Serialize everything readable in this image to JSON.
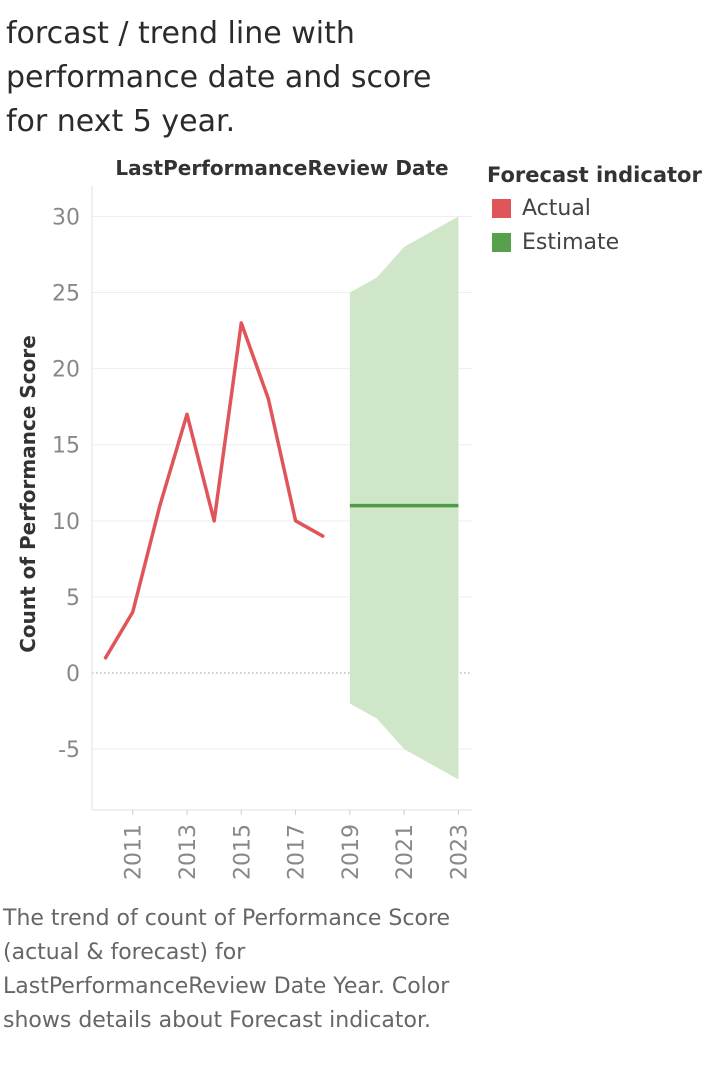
{
  "title": "forcast / trend line with\nperformance  date and score\nfor next 5 year.",
  "caption": "The trend of count of Performance Score (actual & forecast)  for LastPerformanceReview Date Year. Color shows details about Forecast indicator.",
  "colors": {
    "actual": "#e05559",
    "estimate_line": "#4f9a45",
    "estimate_band": "#cfe6c9",
    "legend_actual": "#e05559",
    "legend_estimate": "#57a14d"
  },
  "chart_data": {
    "type": "line",
    "title": "LastPerformanceReview Date",
    "xlabel": "LastPerformanceReview Date",
    "ylabel": "Count of Performance Score",
    "xlim": [
      2009.5,
      2023.5
    ],
    "ylim": [
      -9,
      32
    ],
    "y_ticks": [
      30,
      25,
      20,
      15,
      10,
      5,
      0,
      -5
    ],
    "y_tick_labels": [
      "30",
      "25",
      "20",
      "15",
      "10",
      "5",
      "0",
      "-5"
    ],
    "x_ticks": [
      2011,
      2013,
      2015,
      2017,
      2019,
      2021,
      2023
    ],
    "x_tick_labels": [
      "2011",
      "2013",
      "2015",
      "2017",
      "2019",
      "2021",
      "2023"
    ],
    "legend": {
      "title": "Forecast indicator",
      "position": "right",
      "items": [
        {
          "label": "Actual",
          "color": "#e05559"
        },
        {
          "label": "Estimate",
          "color": "#57a14d"
        }
      ]
    },
    "series": [
      {
        "name": "Actual",
        "x": [
          2010,
          2011,
          2012,
          2013,
          2014,
          2015,
          2016,
          2017,
          2018
        ],
        "values": [
          1,
          4,
          11,
          17,
          10,
          23,
          18,
          10,
          9
        ]
      },
      {
        "name": "Estimate",
        "x": [
          2019,
          2020,
          2021,
          2022,
          2023
        ],
        "values": [
          11,
          11,
          11,
          11,
          11
        ],
        "upper": [
          25,
          26,
          28,
          29,
          30
        ],
        "lower": [
          -2,
          -3,
          -5,
          -6,
          -7
        ]
      }
    ]
  }
}
